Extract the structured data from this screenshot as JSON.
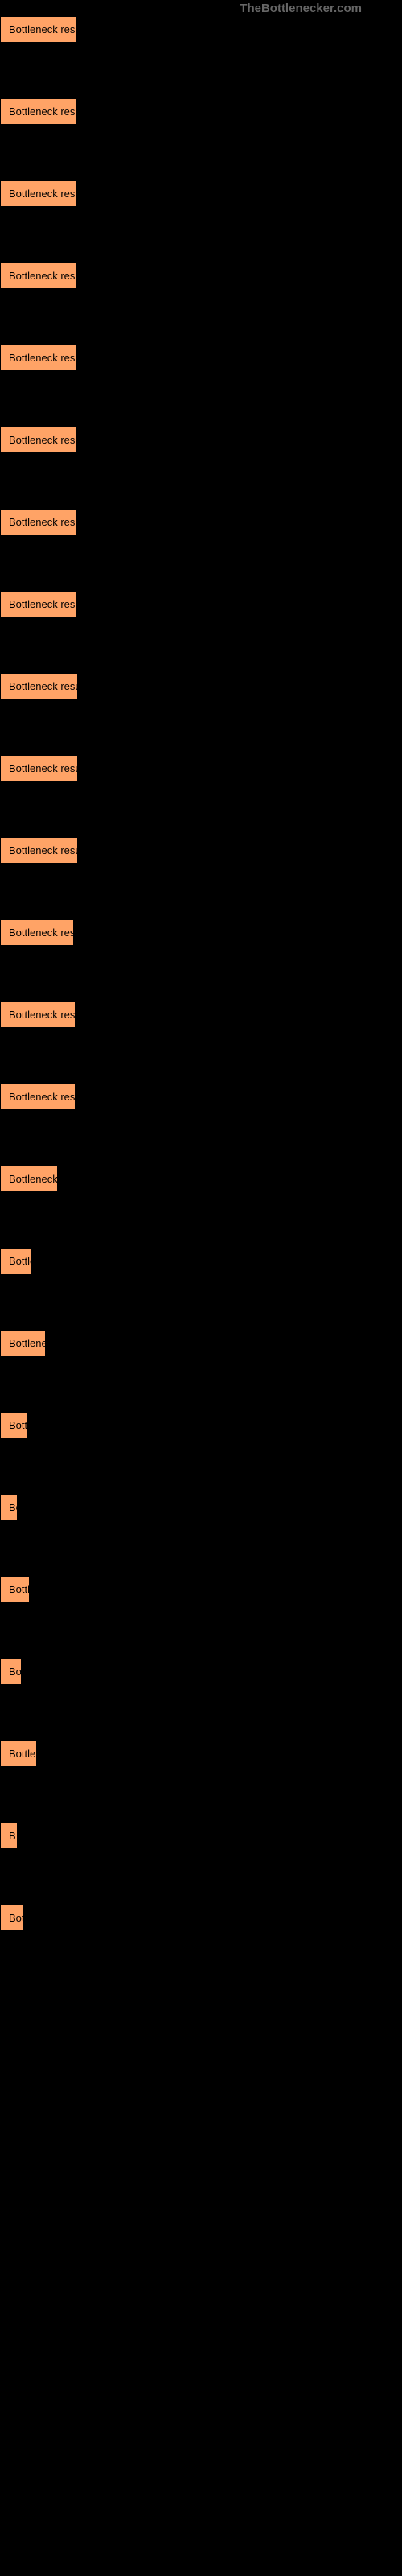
{
  "watermark": "TheBottlenecker.com",
  "boxes": [
    {
      "label": "Bottleneck result",
      "width": 95
    },
    {
      "label": "Bottleneck result",
      "width": 95
    },
    {
      "label": "Bottleneck result",
      "width": 95
    },
    {
      "label": "Bottleneck result",
      "width": 95
    },
    {
      "label": "Bottleneck result",
      "width": 95
    },
    {
      "label": "Bottleneck result",
      "width": 95
    },
    {
      "label": "Bottleneck result",
      "width": 95
    },
    {
      "label": "Bottleneck result",
      "width": 95
    },
    {
      "label": "Bottleneck result",
      "width": 97
    },
    {
      "label": "Bottleneck result",
      "width": 97
    },
    {
      "label": "Bottleneck result",
      "width": 97
    },
    {
      "label": "Bottleneck resu",
      "width": 92
    },
    {
      "label": "Bottleneck resul",
      "width": 94
    },
    {
      "label": "Bottleneck resul",
      "width": 94
    },
    {
      "label": "Bottleneck r",
      "width": 72
    },
    {
      "label": "Bottlen",
      "width": 40
    },
    {
      "label": "Bottleneck",
      "width": 57
    },
    {
      "label": "Bottle",
      "width": 35
    },
    {
      "label": "Bc",
      "width": 17
    },
    {
      "label": "Bottle",
      "width": 37
    },
    {
      "label": "Bott",
      "width": 27
    },
    {
      "label": "Bottlene",
      "width": 46
    },
    {
      "label": "B",
      "width": 7
    },
    {
      "label": "Bottl",
      "width": 30
    }
  ],
  "styling": {
    "box_background": "#ffa366",
    "box_border": "#000000",
    "box_text_color": "#000000",
    "body_background": "#000000",
    "watermark_color": "#666666",
    "box_font_size": 13,
    "watermark_font_size": 15,
    "box_padding_v": 8,
    "box_padding_h": 10,
    "box_margin_bottom": 32
  }
}
